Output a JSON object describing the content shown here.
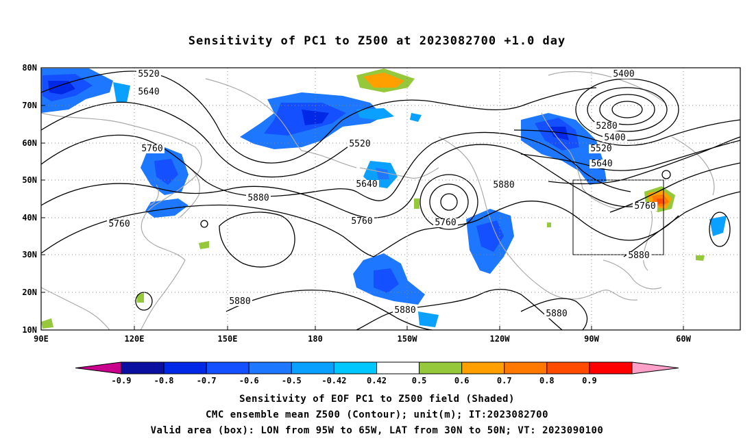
{
  "title": "Sensitivity of PC1 to Z500 at 2023082700 +1.0 day",
  "axes": {
    "lat_labels": [
      "80N",
      "70N",
      "60N",
      "50N",
      "40N",
      "30N",
      "20N",
      "10N"
    ],
    "lon_labels": [
      "90E",
      "120E",
      "150E",
      "180",
      "150W",
      "120W",
      "90W",
      "60W"
    ]
  },
  "contour_labels": [
    "5520",
    "5640",
    "5760",
    "5760",
    "5520",
    "5640",
    "5880",
    "5760",
    "5880",
    "5760",
    "5400",
    "5280",
    "5400",
    "5520",
    "5640",
    "5760",
    "5880",
    "5880",
    "5880",
    "5880"
  ],
  "colorbar": {
    "colors": [
      "#c8008c",
      "#0a0fa0",
      "#0028e6",
      "#1450ff",
      "#1e78ff",
      "#0aa0ff",
      "#00c8ff",
      "#ffffff",
      "#96c83c",
      "#ffa000",
      "#ff7800",
      "#ff4b00",
      "#ff0000",
      "#ffa0c8"
    ],
    "labels": [
      "-0.9",
      "-0.8",
      "-0.7",
      "-0.6",
      "-0.5",
      "-0.42",
      "0.42",
      "0.5",
      "0.6",
      "0.7",
      "0.8",
      "0.9"
    ]
  },
  "captions": [
    "Sensitivity of EOF PC1 to Z500 field (Shaded)",
    "CMC ensemble mean Z500 (Contour); unit(m); IT:2023082700",
    "Valid area (box): LON from 95W to 65W, LAT from 30N to 50N; VT: 2023090100"
  ]
}
